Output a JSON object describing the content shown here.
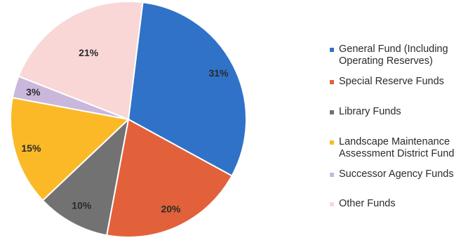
{
  "chart_data": {
    "type": "pie",
    "slices": [
      {
        "label": "General Fund (Including Operating Reserves)",
        "value": 31,
        "display": "31%",
        "color": "#2f72c8"
      },
      {
        "label": "Special Reserve Funds",
        "value": 20,
        "display": "20%",
        "color": "#e2613a"
      },
      {
        "label": "Library Funds",
        "value": 10,
        "display": "10%",
        "color": "#727272"
      },
      {
        "label": "Landscape Maintenance Assessment District Fund",
        "value": 15,
        "display": "15%",
        "color": "#fbb928"
      },
      {
        "label": "Successor Agency Funds",
        "value": 3,
        "display": "3%",
        "color": "#c9b8db"
      },
      {
        "label": "Other Funds",
        "value": 21,
        "display": "21%",
        "color": "#f9d7d7"
      }
    ],
    "legend": {
      "position": "right",
      "entries": [
        "General Fund (Including\nOperating Reserves)",
        "Special Reserve Funds",
        "Library Funds",
        "Landscape Maintenance\nAssessment District Fund",
        "Successor Agency Funds",
        "Other Funds"
      ]
    }
  }
}
